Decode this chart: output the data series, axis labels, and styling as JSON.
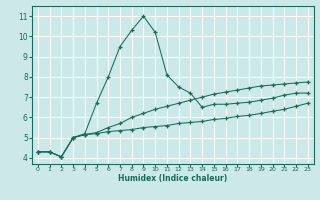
{
  "xlabel": "Humidex (Indice chaleur)",
  "bg_color": "#cce8e8",
  "grid_color": "#ffffff",
  "line_color": "#1a6b5a",
  "xlim": [
    -0.5,
    23.5
  ],
  "ylim": [
    3.7,
    11.5
  ],
  "xticks": [
    0,
    1,
    2,
    3,
    4,
    5,
    6,
    7,
    8,
    9,
    10,
    11,
    12,
    13,
    14,
    15,
    16,
    17,
    18,
    19,
    20,
    21,
    22,
    23
  ],
  "yticks": [
    4,
    5,
    6,
    7,
    8,
    9,
    10,
    11
  ],
  "series1_x": [
    0,
    1,
    2,
    3,
    4,
    5,
    6,
    7,
    8,
    9,
    10,
    11,
    12,
    13,
    14,
    15,
    16,
    17,
    18,
    19,
    20,
    21,
    22,
    23
  ],
  "series1_y": [
    4.3,
    4.3,
    4.05,
    5.0,
    5.15,
    5.2,
    5.3,
    5.35,
    5.4,
    5.5,
    5.55,
    5.6,
    5.7,
    5.75,
    5.8,
    5.9,
    5.95,
    6.05,
    6.1,
    6.2,
    6.3,
    6.4,
    6.55,
    6.7
  ],
  "series2_x": [
    0,
    1,
    2,
    3,
    4,
    5,
    6,
    7,
    8,
    9,
    10,
    11,
    12,
    13,
    14,
    15,
    16,
    17,
    18,
    19,
    20,
    21,
    22,
    23
  ],
  "series2_y": [
    4.3,
    4.3,
    4.05,
    5.0,
    5.15,
    5.25,
    5.5,
    5.7,
    6.0,
    6.2,
    6.4,
    6.55,
    6.7,
    6.85,
    7.0,
    7.15,
    7.25,
    7.35,
    7.45,
    7.55,
    7.6,
    7.65,
    7.7,
    7.75
  ],
  "series3_x": [
    0,
    1,
    2,
    3,
    4,
    5,
    6,
    7,
    8,
    9,
    10,
    11,
    12,
    13,
    14,
    15,
    16,
    17,
    18,
    19,
    20,
    21,
    22,
    23
  ],
  "series3_y": [
    4.3,
    4.3,
    4.05,
    5.0,
    5.2,
    6.7,
    8.0,
    9.5,
    10.3,
    11.0,
    10.2,
    8.1,
    7.5,
    7.2,
    6.5,
    6.65,
    6.65,
    6.7,
    6.75,
    6.85,
    6.95,
    7.1,
    7.2,
    7.2
  ]
}
